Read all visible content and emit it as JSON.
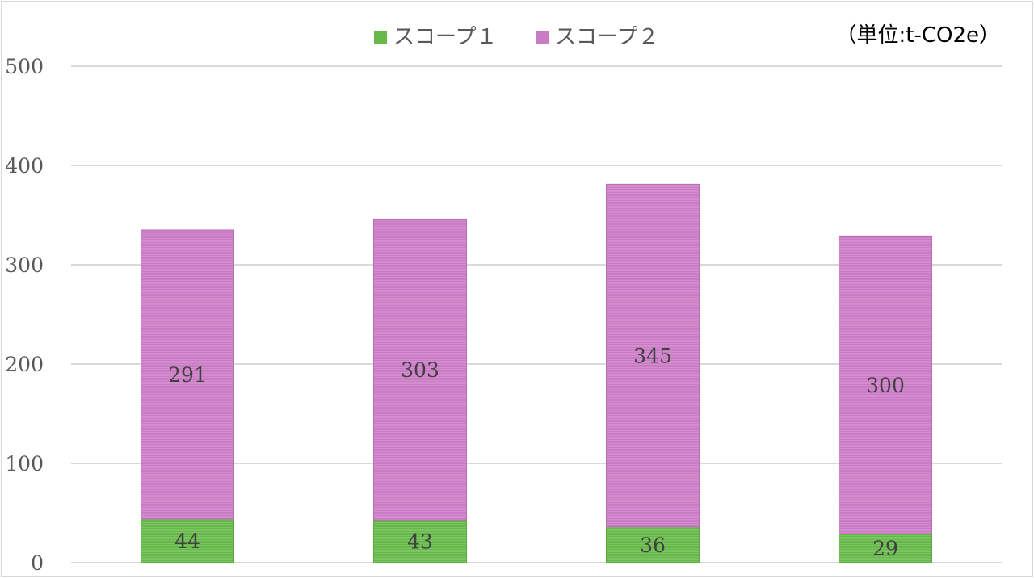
{
  "chart_data": {
    "type": "bar",
    "stacked": true,
    "unit_note": "（単位:t-CO2e）",
    "categories": [
      "",
      "",
      "",
      ""
    ],
    "series": [
      {
        "name": "スコープ１",
        "values": [
          44,
          43,
          36,
          29
        ],
        "color": "#66b848"
      },
      {
        "name": "スコープ２",
        "values": [
          291,
          303,
          345,
          300
        ],
        "color": "#c97bc4"
      }
    ],
    "ylim": [
      0,
      500
    ],
    "yticks": [
      0,
      100,
      200,
      300,
      400,
      500
    ],
    "grid": true,
    "legend": "top-center",
    "gridline_color": "#d9d9d9"
  }
}
